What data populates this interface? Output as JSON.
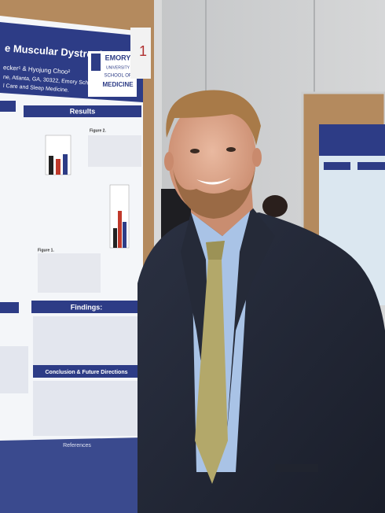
{
  "poster": {
    "title": "e Muscular Dystrophy",
    "authors": "ecker¹ & Hyojung Choo²",
    "affiliation": [
      "ne, Atlanta, GA, 30322, Emory School of",
      "l Care and Sleep Medicine."
    ],
    "logo": [
      "EMORY",
      "UNIVERSITY",
      "SCHOOL OF",
      "MEDICINE"
    ],
    "sections": [
      "Results",
      "Findings:",
      "Conclusion & Future Directions",
      "References"
    ],
    "figures": [
      "Figure 1.",
      "Figure 2."
    ],
    "board_number": "1"
  }
}
